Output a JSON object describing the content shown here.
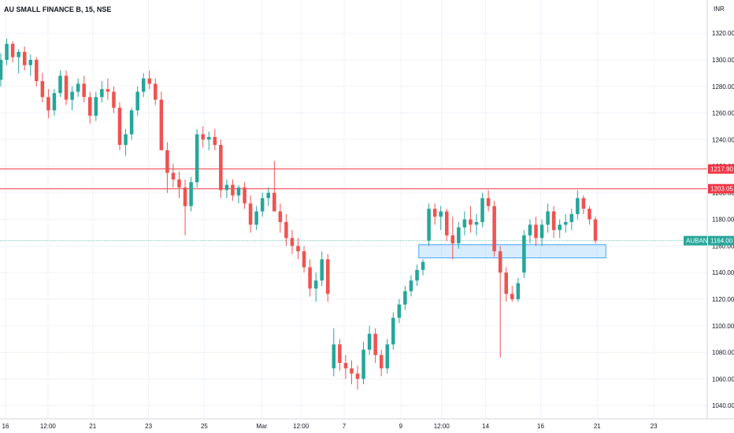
{
  "chart_data": {
    "type": "candlestick",
    "title": "AU SMALL FINANCE B, 15, NSE",
    "currency": "INR",
    "ylim": [
      1030,
      1345
    ],
    "y_ticks": [
      1040,
      1060,
      1080,
      1100,
      1120,
      1140,
      1160,
      1180,
      1200,
      1220,
      1240,
      1260,
      1280,
      1300,
      1320
    ],
    "y_tick_labels": [
      "1040.00",
      "1060.00",
      "1080.00",
      "1100.00",
      "1120.00",
      "1140.00",
      "1160.00",
      "1180.00",
      "1200.00",
      "1220.00",
      "1240.00",
      "1260.00",
      "1280.00",
      "1300.00",
      "1320.00"
    ],
    "x_tick_labels": [
      "16",
      "12:00",
      "21",
      "23",
      "25",
      "Mar",
      "12:00",
      "7",
      "9",
      "12:00",
      "14",
      "16",
      "21",
      "23"
    ],
    "x_ticks": [
      7,
      61,
      118,
      189,
      260,
      333,
      383,
      438,
      510,
      562,
      618,
      688,
      760,
      832
    ],
    "x_range": [
      0,
      900
    ],
    "grid": true,
    "up_color": "#26a69a",
    "down_color": "#ef5350",
    "series": [
      {
        "values": [
          [
            1285,
            1305,
            1280,
            1300
          ],
          [
            1300,
            1316,
            1296,
            1312
          ],
          [
            1312,
            1314,
            1298,
            1302
          ],
          [
            1302,
            1308,
            1290,
            1306
          ],
          [
            1306,
            1310,
            1292,
            1296
          ],
          [
            1296,
            1304,
            1288,
            1300
          ],
          [
            1300,
            1302,
            1280,
            1284
          ],
          [
            1284,
            1290,
            1268,
            1272
          ],
          [
            1272,
            1278,
            1256,
            1262
          ],
          [
            1262,
            1278,
            1258,
            1275
          ],
          [
            1275,
            1292,
            1272,
            1288
          ],
          [
            1288,
            1292,
            1266,
            1270
          ],
          [
            1270,
            1280,
            1262,
            1276
          ],
          [
            1276,
            1286,
            1272,
            1282
          ],
          [
            1282,
            1288,
            1268,
            1272
          ],
          [
            1272,
            1276,
            1252,
            1258
          ],
          [
            1258,
            1276,
            1254,
            1272
          ],
          [
            1272,
            1284,
            1268,
            1278
          ],
          [
            1278,
            1286,
            1270,
            1276
          ],
          [
            1276,
            1280,
            1260,
            1264
          ],
          [
            1264,
            1268,
            1232,
            1236
          ],
          [
            1236,
            1248,
            1228,
            1244
          ],
          [
            1244,
            1264,
            1240,
            1262
          ],
          [
            1262,
            1280,
            1258,
            1276
          ],
          [
            1276,
            1290,
            1272,
            1286
          ],
          [
            1286,
            1292,
            1278,
            1282
          ],
          [
            1282,
            1286,
            1266,
            1270
          ],
          [
            1270,
            1276,
            1238,
            1232
          ],
          [
            1232,
            1238,
            1200,
            1215
          ],
          [
            1215,
            1222,
            1204,
            1210
          ],
          [
            1210,
            1216,
            1196,
            1204
          ],
          [
            1204,
            1210,
            1168,
            1190
          ],
          [
            1190,
            1212,
            1186,
            1208
          ],
          [
            1208,
            1248,
            1204,
            1244
          ],
          [
            1244,
            1250,
            1234,
            1240
          ],
          [
            1240,
            1246,
            1232,
            1242
          ],
          [
            1242,
            1248,
            1232,
            1236
          ],
          [
            1236,
            1240,
            1196,
            1202
          ],
          [
            1202,
            1210,
            1196,
            1206
          ],
          [
            1206,
            1210,
            1194,
            1198
          ],
          [
            1198,
            1206,
            1192,
            1204
          ],
          [
            1204,
            1208,
            1188,
            1192
          ],
          [
            1192,
            1198,
            1170,
            1176
          ],
          [
            1176,
            1190,
            1172,
            1186
          ],
          [
            1186,
            1200,
            1182,
            1196
          ],
          [
            1196,
            1204,
            1190,
            1200
          ],
          [
            1200,
            1224,
            1196,
            1186
          ],
          [
            1186,
            1192,
            1170,
            1178
          ],
          [
            1178,
            1184,
            1160,
            1166
          ],
          [
            1166,
            1172,
            1154,
            1160
          ],
          [
            1160,
            1166,
            1150,
            1156
          ],
          [
            1156,
            1160,
            1140,
            1144
          ],
          [
            1144,
            1150,
            1122,
            1128
          ],
          [
            1128,
            1140,
            1118,
            1134
          ],
          [
            1134,
            1156,
            1130,
            1150
          ],
          [
            1150,
            1154,
            1118,
            1124
          ],
          [
            1068,
            1098,
            1062,
            1086
          ],
          [
            1086,
            1090,
            1066,
            1072
          ],
          [
            1072,
            1078,
            1060,
            1068
          ],
          [
            1068,
            1074,
            1056,
            1064
          ],
          [
            1064,
            1070,
            1052,
            1060
          ],
          [
            1060,
            1088,
            1056,
            1082
          ],
          [
            1082,
            1100,
            1078,
            1094
          ],
          [
            1094,
            1098,
            1072,
            1078
          ],
          [
            1078,
            1082,
            1062,
            1068
          ],
          [
            1068,
            1090,
            1064,
            1086
          ],
          [
            1086,
            1110,
            1082,
            1106
          ],
          [
            1106,
            1120,
            1102,
            1116
          ],
          [
            1116,
            1130,
            1112,
            1126
          ],
          [
            1126,
            1138,
            1122,
            1134
          ],
          [
            1134,
            1146,
            1130,
            1142
          ],
          [
            1142,
            1150,
            1138,
            1148
          ],
          [
            1164,
            1192,
            1160,
            1188
          ],
          [
            1188,
            1192,
            1176,
            1182
          ],
          [
            1182,
            1190,
            1172,
            1186
          ],
          [
            1186,
            1188,
            1164,
            1168
          ],
          [
            1168,
            1182,
            1150,
            1162
          ],
          [
            1162,
            1178,
            1158,
            1174
          ],
          [
            1174,
            1186,
            1168,
            1180
          ],
          [
            1180,
            1190,
            1170,
            1176
          ],
          [
            1176,
            1184,
            1168,
            1178
          ],
          [
            1178,
            1200,
            1174,
            1196
          ],
          [
            1196,
            1202,
            1186,
            1190
          ],
          [
            1190,
            1194,
            1152,
            1156
          ],
          [
            1156,
            1160,
            1076,
            1140
          ],
          [
            1140,
            1144,
            1118,
            1124
          ],
          [
            1124,
            1130,
            1118,
            1120
          ],
          [
            1120,
            1136,
            1118,
            1132
          ],
          [
            1140,
            1172,
            1136,
            1168
          ],
          [
            1168,
            1180,
            1162,
            1176
          ],
          [
            1176,
            1182,
            1160,
            1166
          ],
          [
            1166,
            1180,
            1160,
            1176
          ],
          [
            1176,
            1192,
            1170,
            1186
          ],
          [
            1186,
            1190,
            1166,
            1172
          ],
          [
            1172,
            1180,
            1166,
            1176
          ],
          [
            1176,
            1184,
            1170,
            1178
          ],
          [
            1178,
            1188,
            1172,
            1184
          ],
          [
            1184,
            1202,
            1180,
            1196
          ],
          [
            1196,
            1198,
            1184,
            1188
          ],
          [
            1188,
            1190,
            1176,
            1180
          ],
          [
            1180,
            1182,
            1162,
            1164
          ]
        ]
      }
    ],
    "horizontal_lines": [
      {
        "value": 1217.9,
        "label": "1217.90",
        "color": "#f23645"
      },
      {
        "value": 1203.05,
        "label": "1203.05",
        "color": "#f23645"
      }
    ],
    "last_price": {
      "symbol": "AUBANK",
      "value": "1164.00",
      "color": "#26a69a"
    },
    "zone": {
      "y_low": 1151,
      "y_high": 1161,
      "x_start": 533,
      "x_end": 771
    }
  }
}
